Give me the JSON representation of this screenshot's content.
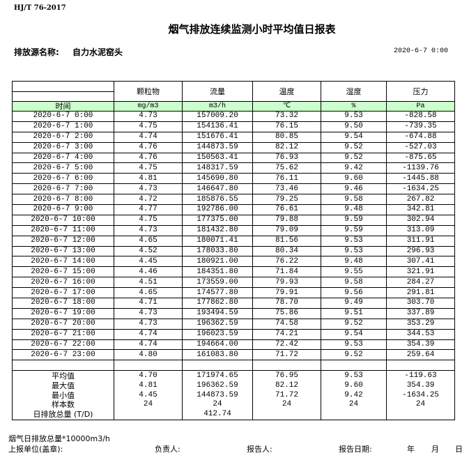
{
  "standard": "HJ/T  76-2017",
  "title": "烟气排放连续监测小时平均值日报表",
  "source_label": "排放源名称:",
  "source_name": "自力水泥窑头",
  "report_datetime": "2020-6-7  0:00",
  "columns": [
    "颗粒物",
    "流量",
    "温度",
    "湿度",
    "压力"
  ],
  "time_label": "时间",
  "units": [
    "mg/m3",
    "m3/h",
    "℃",
    "%",
    "Pa"
  ],
  "rows": [
    [
      "2020-6-7  0:00",
      "4.73",
      "157009.20",
      "73.32",
      "9.53",
      "-828.58"
    ],
    [
      "2020-6-7  1:00",
      "4.75",
      "154136.41",
      "76.15",
      "9.50",
      "-739.35"
    ],
    [
      "2020-6-7  2:00",
      "4.74",
      "151676.41",
      "80.85",
      "9.54",
      "-674.88"
    ],
    [
      "2020-6-7  3:00",
      "4.76",
      "144873.59",
      "82.12",
      "9.52",
      "-527.03"
    ],
    [
      "2020-6-7  4:00",
      "4.76",
      "150563.41",
      "76.93",
      "9.52",
      "-875.65"
    ],
    [
      "2020-6-7  5:00",
      "4.75",
      "148317.59",
      "75.62",
      "9.42",
      "-1139.76"
    ],
    [
      "2020-6-7  6:00",
      "4.81",
      "145690.80",
      "76.11",
      "9.60",
      "-1445.88"
    ],
    [
      "2020-6-7  7:00",
      "4.73",
      "146647.80",
      "73.46",
      "9.46",
      "-1634.25"
    ],
    [
      "2020-6-7  8:00",
      "4.72",
      "185876.55",
      "79.25",
      "9.58",
      "267.82"
    ],
    [
      "2020-6-7  9:00",
      "4.77",
      "192786.00",
      "76.61",
      "9.48",
      "342.81"
    ],
    [
      "2020-6-7 10:00",
      "4.75",
      "177375.00",
      "79.88",
      "9.59",
      "302.94"
    ],
    [
      "2020-6-7 11:00",
      "4.73",
      "181432.80",
      "79.09",
      "9.59",
      "313.09"
    ],
    [
      "2020-6-7 12:00",
      "4.65",
      "180071.41",
      "81.56",
      "9.53",
      "311.91"
    ],
    [
      "2020-6-7 13:00",
      "4.52",
      "178033.80",
      "80.34",
      "9.53",
      "296.93"
    ],
    [
      "2020-6-7 14:00",
      "4.45",
      "180921.00",
      "76.22",
      "9.48",
      "307.41"
    ],
    [
      "2020-6-7 15:00",
      "4.46",
      "184351.80",
      "71.84",
      "9.55",
      "321.91"
    ],
    [
      "2020-6-7 16:00",
      "4.51",
      "173559.00",
      "79.93",
      "9.58",
      "284.27"
    ],
    [
      "2020-6-7 17:00",
      "4.65",
      "174577.80",
      "79.91",
      "9.56",
      "291.81"
    ],
    [
      "2020-6-7 18:00",
      "4.71",
      "177862.80",
      "78.70",
      "9.49",
      "303.70"
    ],
    [
      "2020-6-7 19:00",
      "4.73",
      "193494.59",
      "75.86",
      "9.51",
      "337.89"
    ],
    [
      "2020-6-7 20:00",
      "4.73",
      "196362.59",
      "74.58",
      "9.52",
      "353.29"
    ],
    [
      "2020-6-7 21:00",
      "4.74",
      "196023.59",
      "74.21",
      "9.54",
      "344.53"
    ],
    [
      "2020-6-7 22:00",
      "4.74",
      "194664.00",
      "72.42",
      "9.53",
      "354.39"
    ],
    [
      "2020-6-7 23:00",
      "4.80",
      "161083.80",
      "71.72",
      "9.52",
      "259.64"
    ]
  ],
  "summary": [
    [
      "平均值",
      "4.70",
      "171974.65",
      "76.95",
      "9.53",
      "-119.63"
    ],
    [
      "最大值",
      "4.81",
      "196362.59",
      "82.12",
      "9.60",
      "354.39"
    ],
    [
      "最小值",
      "4.45",
      "144873.59",
      "71.72",
      "9.42",
      "-1634.25"
    ],
    [
      "样本数",
      "24",
      "24",
      "24",
      "24",
      "24"
    ],
    [
      "日排放总量 (T/D)",
      "",
      "412.74",
      "",
      "",
      ""
    ]
  ],
  "footer": {
    "note": "烟气日排放总量*10000m3/h",
    "unit_label": "上报单位(盖章):",
    "responsible_label": "负责人:",
    "reporter_label": "报告人:",
    "report_date_label": "报告日期:",
    "year": "年",
    "month": "月",
    "day": "日"
  }
}
